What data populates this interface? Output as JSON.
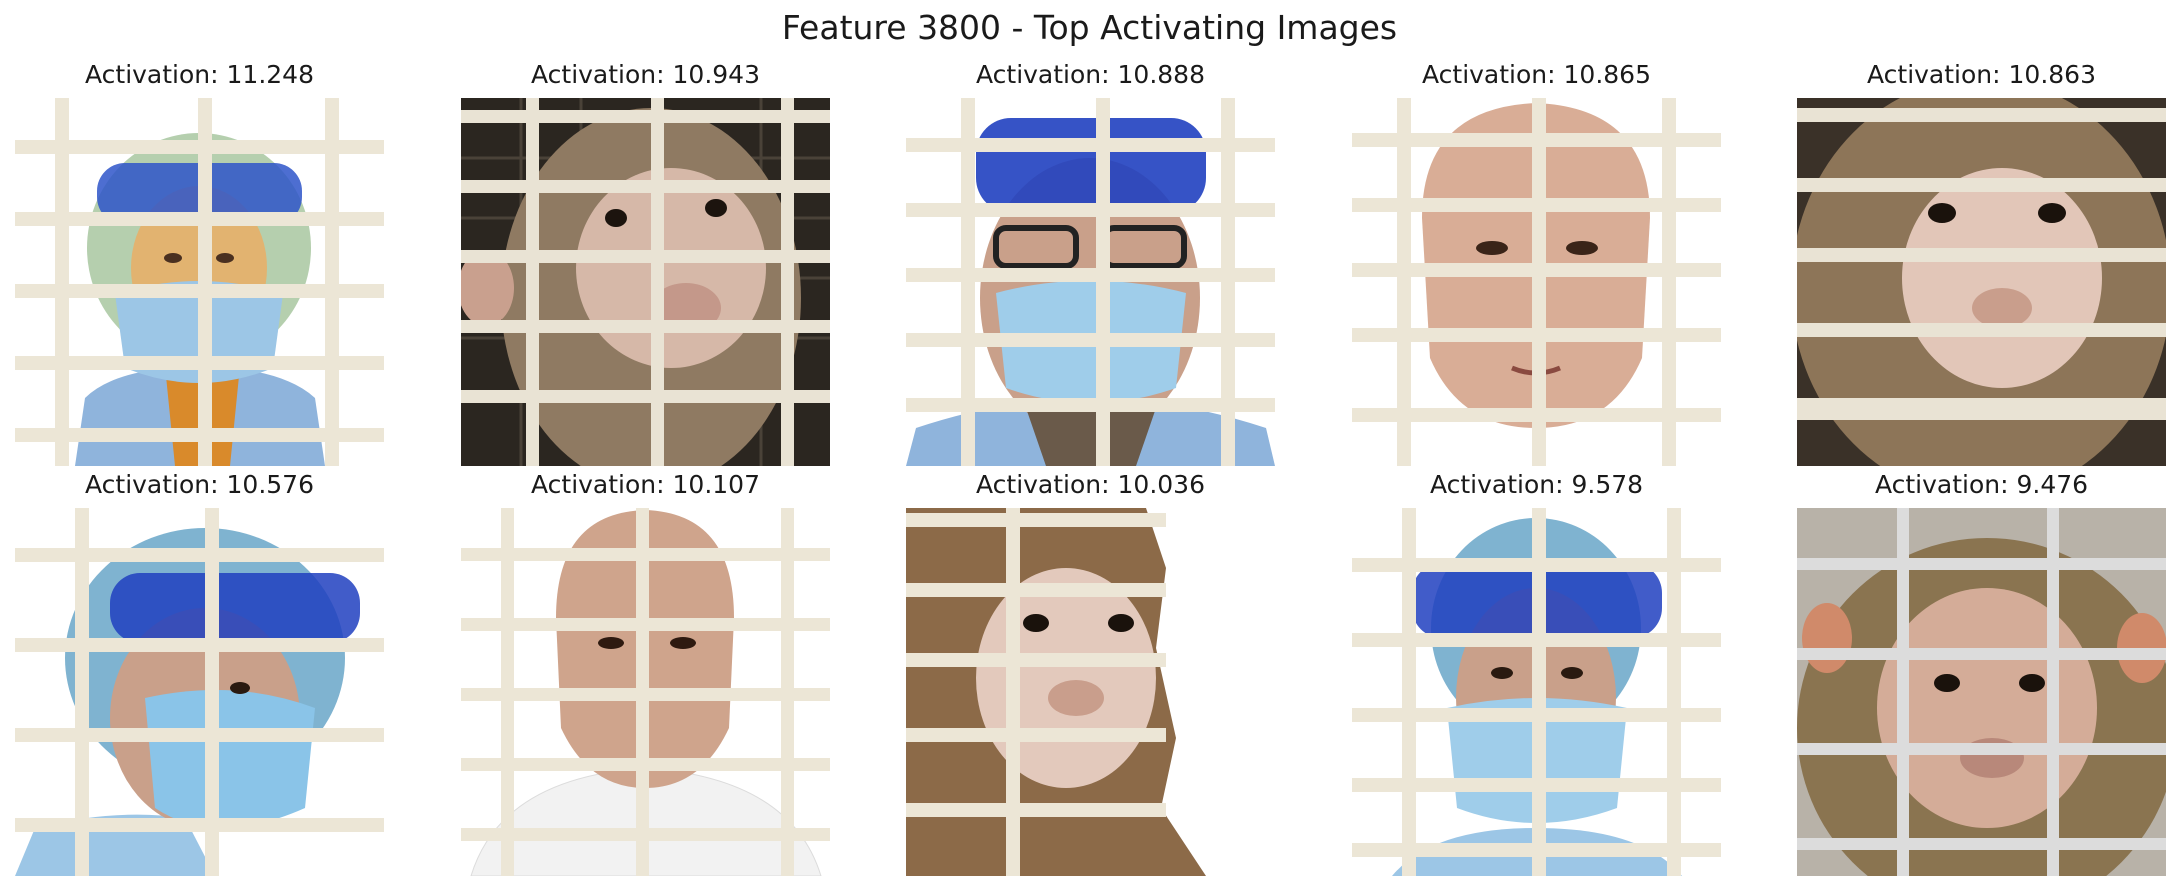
{
  "title": "Feature 3800 - Top Activating Images",
  "images": [
    {
      "caption": "Activation: 11.248",
      "subject": "person-in-ppe-behind-cage",
      "background": "white"
    },
    {
      "caption": "Activation: 10.943",
      "subject": "monkey-behind-cage",
      "background": "dark-cage"
    },
    {
      "caption": "Activation: 10.888",
      "subject": "person-in-ppe-glasses-behind-cage",
      "background": "white"
    },
    {
      "caption": "Activation: 10.865",
      "subject": "bald-man-behind-cage",
      "background": "white"
    },
    {
      "caption": "Activation: 10.863",
      "subject": "monkey-behind-cage",
      "background": "dark-cage"
    },
    {
      "caption": "Activation: 10.576",
      "subject": "person-in-ppe-behind-cage",
      "background": "white"
    },
    {
      "caption": "Activation: 10.107",
      "subject": "bald-man-behind-cage",
      "background": "white"
    },
    {
      "caption": "Activation: 10.036",
      "subject": "monkey-cutout-behind-cage",
      "background": "white"
    },
    {
      "caption": "Activation: 9.578",
      "subject": "person-in-ppe-behind-cage",
      "background": "white"
    },
    {
      "caption": "Activation: 9.476",
      "subject": "monkey-behind-cage",
      "background": "grey-cage"
    }
  ]
}
